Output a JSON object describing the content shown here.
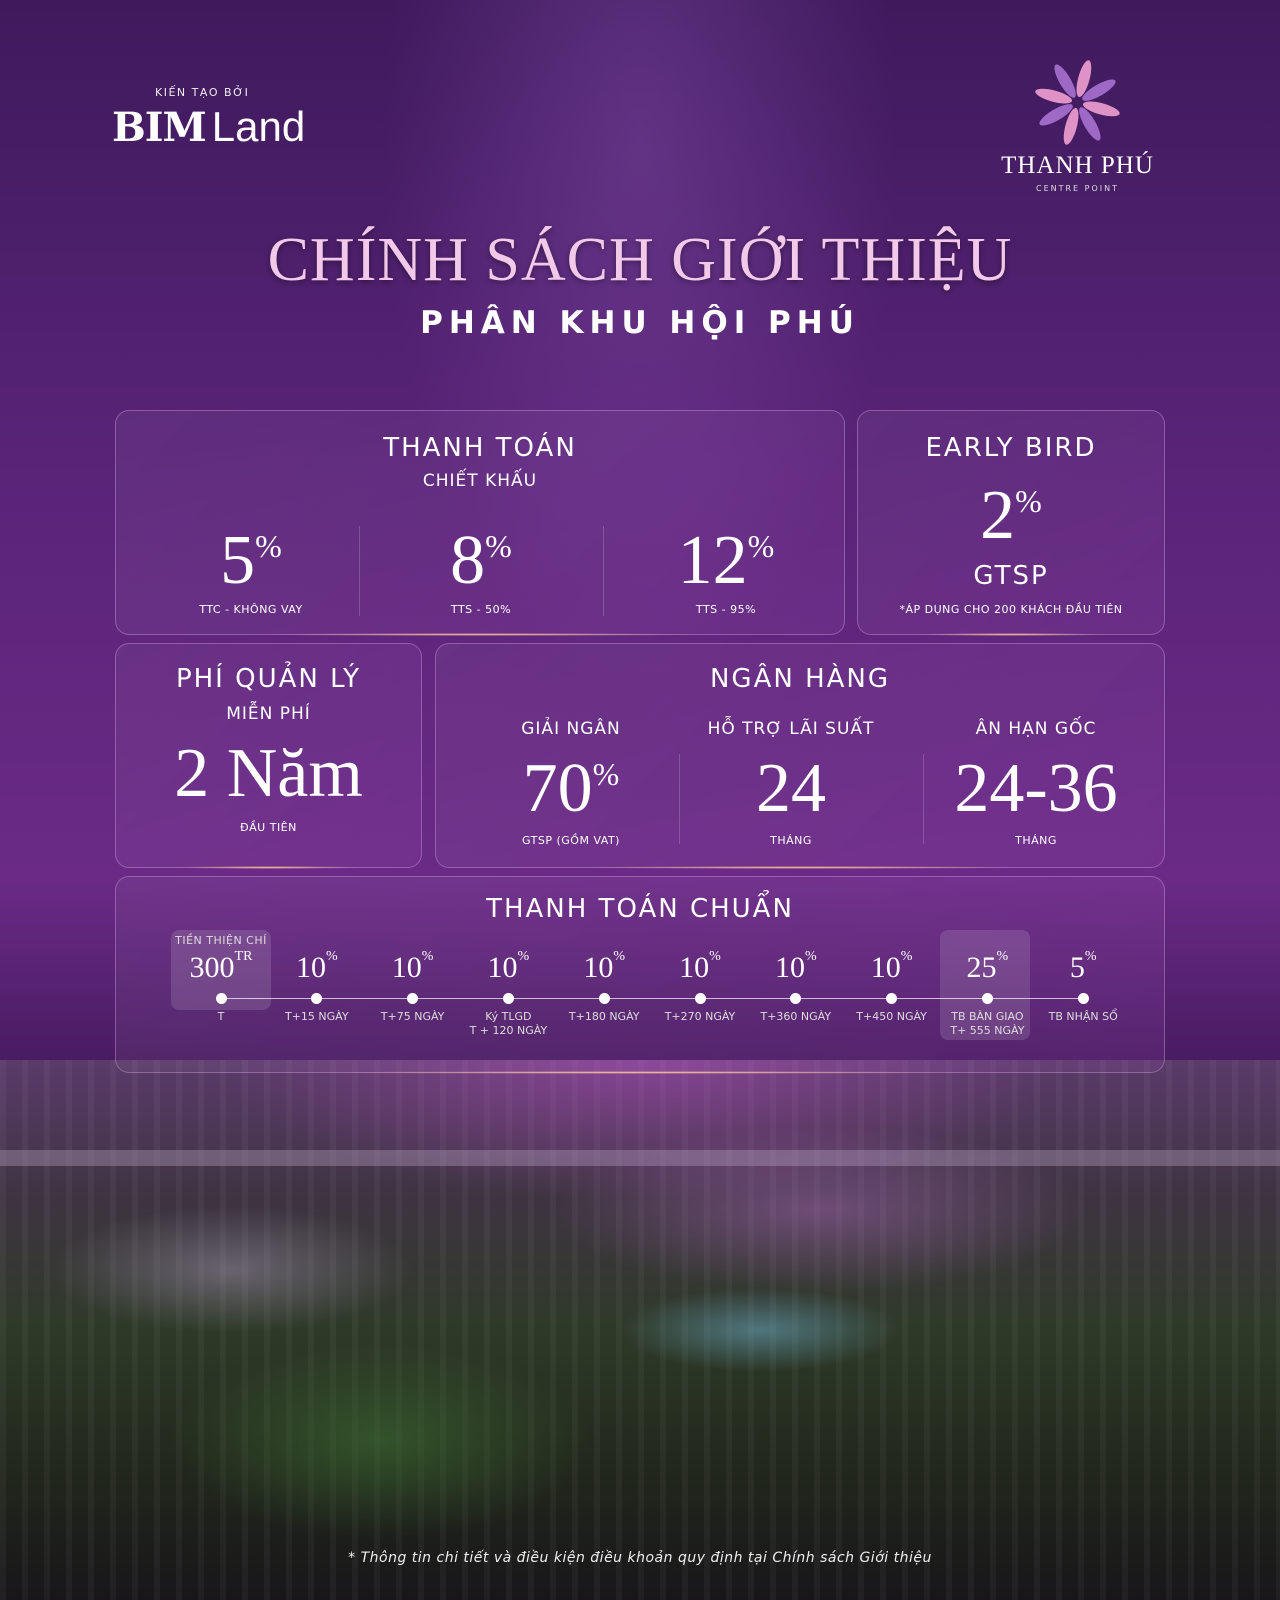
{
  "header": {
    "built_by": "KIẾN TẠO BỞI",
    "developer_logo": {
      "bold": "BIM",
      "light": "Land"
    },
    "project_logo": {
      "name": "THANH PHÚ",
      "sub": "CENTRE POINT"
    }
  },
  "title": "CHÍNH SÁCH GIỚI THIỆU",
  "subtitle": "PHÂN KHU HỘI PHÚ",
  "payment": {
    "title": "THANH TOÁN",
    "subtitle": "CHIẾT KHẤU",
    "items": [
      {
        "value": "5",
        "unit": "%",
        "label": "TTC - KHÔNG VAY"
      },
      {
        "value": "8",
        "unit": "%",
        "label": "TTS - 50%"
      },
      {
        "value": "12",
        "unit": "%",
        "label": "TTS - 95%"
      }
    ]
  },
  "early_bird": {
    "title": "EARLY BIRD",
    "value": "2",
    "unit": "%",
    "label": "GTSP",
    "note": "*ÁP DỤNG CHO 200 KHÁCH ĐẦU TIÊN"
  },
  "management_fee": {
    "title": "PHÍ QUẢN LÝ",
    "subtitle": "MIỄN PHÍ",
    "value": "2 Năm",
    "label": "ĐẦU TIÊN"
  },
  "bank": {
    "title": "NGÂN HÀNG",
    "items": [
      {
        "heading": "GIẢI NGÂN",
        "value": "70",
        "unit": "%",
        "label": "GTSP (GỒM VAT)"
      },
      {
        "heading": "HỖ TRỢ LÃI SUẤT",
        "value": "24",
        "unit": "",
        "label": "THÁNG"
      },
      {
        "heading": "ÂN HẠN GỐC",
        "value": "24-36",
        "unit": "",
        "label": "THÁNG"
      }
    ]
  },
  "standard": {
    "title": "THANH TOÁN CHUẨN",
    "steps": [
      {
        "top": "TIỀN THIỆN CHÍ",
        "value": "300",
        "unit": "TR",
        "label": "T",
        "highlight": true
      },
      {
        "value": "10",
        "unit": "%",
        "label": "T+15 NGÀY"
      },
      {
        "value": "10",
        "unit": "%",
        "label": "T+75 NGÀY"
      },
      {
        "value": "10",
        "unit": "%",
        "label": "Ký TLGD",
        "label2": "T + 120 NGÀY"
      },
      {
        "value": "10",
        "unit": "%",
        "label": "T+180 NGÀY"
      },
      {
        "value": "10",
        "unit": "%",
        "label": "T+270 NGÀY"
      },
      {
        "value": "10",
        "unit": "%",
        "label": "T+360 NGÀY"
      },
      {
        "value": "10",
        "unit": "%",
        "label": "T+450 NGÀY"
      },
      {
        "value": "25",
        "unit": "%",
        "label": "TB BÀN GIAO",
        "label2": "T+ 555 NGÀY",
        "highlight": true
      },
      {
        "value": "5",
        "unit": "%",
        "label": "TB NHẬN SỔ"
      }
    ]
  },
  "footnote": "* Thông tin chi tiết và điều kiện điều khoản quy định tại Chính sách Giới thiệu",
  "colors": {
    "title": "#f2c9e8",
    "background": "#5a2479"
  }
}
